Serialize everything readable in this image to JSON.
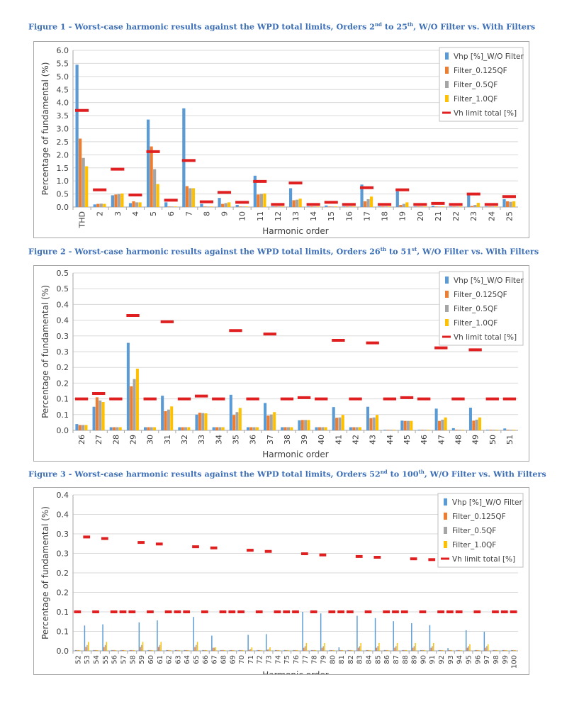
{
  "colors": {
    "vhp": "#5b9bd5",
    "filter_0125": "#ed7d31",
    "filter_05": "#a5a5a5",
    "filter_10": "#ffc000",
    "limit": "#e02020",
    "caption": "#3d6fb6"
  },
  "figures": [
    {
      "caption": {
        "prefix": "Figure 1 - Worst-case harmonic results against the WPD total limits, Orders 2",
        "sup1": "nd",
        "mid": " to 25",
        "sup2": "th",
        "suffix": ", W/O Filter vs. With Filters"
      }
    },
    {
      "caption": {
        "prefix": "Figure 2 - Worst-case harmonic results against the WPD total limits, Orders 26",
        "sup1": "th",
        "mid": " to 51",
        "sup2": "st",
        "suffix": ", W/O Filter vs. With Filters"
      }
    },
    {
      "caption": {
        "prefix": "Figure 3 - Worst-case harmonic results against the WPD total limits, Orders 52",
        "sup1": "nd",
        "mid": " to 100",
        "sup2": "th",
        "suffix": ", W/O Filter vs. With Filters"
      }
    }
  ],
  "chart_data": [
    {
      "type": "bar",
      "xlabel": "Harmonic order",
      "ylabel": "Percentage of fundamental (%)",
      "ylim": [
        0,
        6.0
      ],
      "yticks": [
        "0.0",
        "0.5",
        "1.0",
        "1.5",
        "2.0",
        "2.5",
        "3.0",
        "3.5",
        "4.0",
        "4.5",
        "5.0",
        "5.5",
        "6.0"
      ],
      "grid": true,
      "legend_position": "top-right",
      "categories": [
        "THD",
        "2",
        "3",
        "4",
        "5",
        "6",
        "7",
        "8",
        "9",
        "10",
        "11",
        "12",
        "13",
        "14",
        "15",
        "16",
        "17",
        "18",
        "19",
        "20",
        "21",
        "22",
        "23",
        "24",
        "25"
      ],
      "series": [
        {
          "name": "Vhp [%]_W/O Filter",
          "type": "bar",
          "values": [
            5.45,
            0.1,
            0.45,
            0.15,
            3.35,
            0.18,
            3.78,
            0.12,
            0.35,
            0.08,
            1.2,
            0.02,
            0.72,
            0.02,
            0.06,
            0.02,
            0.86,
            0.02,
            0.6,
            0.02,
            0.05,
            0.02,
            0.52,
            0.02,
            0.3
          ]
        },
        {
          "name": "Filter_0.125QF",
          "type": "bar",
          "values": [
            2.62,
            0.12,
            0.48,
            0.22,
            2.32,
            0.02,
            0.8,
            0.02,
            0.12,
            0.02,
            0.48,
            0.02,
            0.26,
            0.02,
            0.02,
            0.02,
            0.22,
            0.02,
            0.08,
            0.02,
            0.02,
            0.02,
            0.04,
            0.02,
            0.22
          ]
        },
        {
          "name": "Filter_0.5QF",
          "type": "bar",
          "values": [
            1.88,
            0.13,
            0.5,
            0.18,
            1.45,
            0.02,
            0.72,
            0.02,
            0.15,
            0.02,
            0.5,
            0.02,
            0.28,
            0.02,
            0.02,
            0.02,
            0.3,
            0.02,
            0.12,
            0.02,
            0.02,
            0.02,
            0.08,
            0.02,
            0.2
          ]
        },
        {
          "name": "Filter_1.0QF",
          "type": "bar",
          "values": [
            1.56,
            0.12,
            0.52,
            0.18,
            0.88,
            0.02,
            0.72,
            0.02,
            0.18,
            0.02,
            0.52,
            0.02,
            0.32,
            0.02,
            0.02,
            0.02,
            0.4,
            0.02,
            0.18,
            0.02,
            0.02,
            0.02,
            0.16,
            0.02,
            0.22
          ]
        },
        {
          "name": "Vh limit total [%]",
          "type": "limit",
          "values": [
            3.7,
            0.66,
            1.45,
            0.46,
            2.12,
            0.26,
            1.78,
            0.2,
            0.56,
            0.18,
            0.98,
            0.1,
            0.92,
            0.1,
            0.18,
            0.1,
            0.74,
            0.1,
            0.66,
            0.1,
            0.14,
            0.1,
            0.5,
            0.1,
            0.4
          ]
        }
      ]
    },
    {
      "type": "bar",
      "xlabel": "Harmonic order",
      "ylabel": "Percentage of fundamental (%)",
      "ylim": [
        0,
        0.5
      ],
      "yticks": [
        "0.0",
        "0.1",
        "0.1",
        "0.2",
        "0.2",
        "0.3",
        "0.3",
        "0.4",
        "0.4",
        "0.5",
        "0.5"
      ],
      "grid": true,
      "legend_position": "top-right",
      "categories": [
        "26",
        "27",
        "28",
        "29",
        "30",
        "31",
        "32",
        "33",
        "34",
        "35",
        "36",
        "37",
        "38",
        "39",
        "40",
        "41",
        "42",
        "43",
        "44",
        "45",
        "46",
        "47",
        "48",
        "49",
        "50",
        "51"
      ],
      "series": [
        {
          "name": "Vhp [%]_W/O Filter",
          "type": "bar",
          "values": [
            0.02,
            0.075,
            0.01,
            0.278,
            0.01,
            0.11,
            0.01,
            0.05,
            0.01,
            0.113,
            0.01,
            0.087,
            0.01,
            0.032,
            0.01,
            0.074,
            0.01,
            0.075,
            0.002,
            0.031,
            0.002,
            0.069,
            0.007,
            0.072,
            0.002,
            0.006
          ]
        },
        {
          "name": "Filter_0.125QF",
          "type": "bar",
          "values": [
            0.017,
            0.105,
            0.01,
            0.14,
            0.01,
            0.061,
            0.01,
            0.056,
            0.01,
            0.049,
            0.01,
            0.047,
            0.01,
            0.033,
            0.01,
            0.04,
            0.01,
            0.039,
            0.002,
            0.03,
            0.002,
            0.03,
            0.002,
            0.031,
            0.002,
            0.002
          ]
        },
        {
          "name": "Filter_0.5QF",
          "type": "bar",
          "values": [
            0.017,
            0.095,
            0.01,
            0.163,
            0.01,
            0.066,
            0.01,
            0.055,
            0.01,
            0.058,
            0.01,
            0.05,
            0.01,
            0.033,
            0.01,
            0.041,
            0.01,
            0.041,
            0.002,
            0.03,
            0.002,
            0.034,
            0.002,
            0.034,
            0.002,
            0.002
          ]
        },
        {
          "name": "Filter_1.0QF",
          "type": "bar",
          "values": [
            0.017,
            0.09,
            0.01,
            0.196,
            0.01,
            0.076,
            0.01,
            0.054,
            0.01,
            0.071,
            0.01,
            0.058,
            0.01,
            0.033,
            0.01,
            0.049,
            0.01,
            0.049,
            0.002,
            0.03,
            0.002,
            0.041,
            0.002,
            0.041,
            0.002,
            0.002
          ]
        },
        {
          "name": "Vh limit total [%]",
          "type": "limit",
          "values": [
            0.1,
            0.117,
            0.1,
            0.365,
            0.1,
            0.345,
            0.1,
            0.109,
            0.1,
            0.317,
            0.1,
            0.306,
            0.1,
            0.104,
            0.1,
            0.286,
            0.1,
            0.278,
            0.1,
            0.104,
            0.1,
            0.262,
            0.1,
            0.256,
            0.1,
            0.1
          ]
        }
      ]
    },
    {
      "type": "bar",
      "xlabel": "Harmonic order",
      "ylabel": "Percentage of fundamental (%)",
      "ylim": [
        0,
        0.4
      ],
      "yticks": [
        "0.0",
        "0.1",
        "0.1",
        "0.2",
        "0.2",
        "0.3",
        "0.3",
        "0.4",
        "0.4"
      ],
      "grid": true,
      "legend_position": "top-right",
      "categories": [
        "52",
        "53",
        "54",
        "55",
        "56",
        "57",
        "58",
        "59",
        "60",
        "61",
        "62",
        "63",
        "64",
        "65",
        "66",
        "67",
        "68",
        "69",
        "70",
        "71",
        "72",
        "73",
        "74",
        "75",
        "76",
        "77",
        "78",
        "79",
        "80",
        "81",
        "82",
        "83",
        "84",
        "85",
        "86",
        "87",
        "88",
        "89",
        "90",
        "91",
        "92",
        "93",
        "94",
        "95",
        "96",
        "97",
        "98",
        "99",
        "100"
      ],
      "series": [
        {
          "name": "Vhp [%]_W/O Filter",
          "type": "bar",
          "values": [
            0.002,
            0.065,
            0.002,
            0.068,
            0.002,
            0.002,
            0.002,
            0.073,
            0.002,
            0.078,
            0.002,
            0.002,
            0.002,
            0.087,
            0.002,
            0.039,
            0.002,
            0.002,
            0.002,
            0.041,
            0.002,
            0.043,
            0.002,
            0.002,
            0.002,
            0.1,
            0.002,
            0.096,
            0.002,
            0.009,
            0.002,
            0.09,
            0.002,
            0.084,
            0.002,
            0.076,
            0.002,
            0.071,
            0.002,
            0.066,
            0.002,
            0.007,
            0.002,
            0.053,
            0.002,
            0.049,
            0.002,
            0.002,
            0.002
          ]
        },
        {
          "name": "Filter_0.125QF",
          "type": "bar",
          "values": [
            0.002,
            0.01,
            0.002,
            0.01,
            0.002,
            0.002,
            0.002,
            0.01,
            0.002,
            0.01,
            0.002,
            0.002,
            0.002,
            0.01,
            0.002,
            0.008,
            0.002,
            0.002,
            0.002,
            0.003,
            0.002,
            0.003,
            0.002,
            0.002,
            0.002,
            0.008,
            0.002,
            0.008,
            0.002,
            0.002,
            0.002,
            0.008,
            0.002,
            0.008,
            0.002,
            0.008,
            0.002,
            0.008,
            0.002,
            0.008,
            0.002,
            0.002,
            0.002,
            0.008,
            0.002,
            0.008,
            0.002,
            0.002,
            0.002
          ]
        },
        {
          "name": "Filter_0.5QF",
          "type": "bar",
          "values": [
            0.002,
            0.015,
            0.002,
            0.015,
            0.002,
            0.002,
            0.002,
            0.015,
            0.002,
            0.015,
            0.002,
            0.002,
            0.002,
            0.015,
            0.002,
            0.008,
            0.002,
            0.002,
            0.002,
            0.004,
            0.002,
            0.004,
            0.002,
            0.002,
            0.002,
            0.012,
            0.002,
            0.012,
            0.002,
            0.002,
            0.002,
            0.012,
            0.002,
            0.012,
            0.002,
            0.012,
            0.002,
            0.012,
            0.002,
            0.012,
            0.002,
            0.002,
            0.002,
            0.012,
            0.002,
            0.012,
            0.002,
            0.002,
            0.002
          ]
        },
        {
          "name": "Filter_1.0QF",
          "type": "bar",
          "values": [
            0.002,
            0.023,
            0.002,
            0.023,
            0.002,
            0.002,
            0.002,
            0.023,
            0.002,
            0.023,
            0.002,
            0.002,
            0.002,
            0.023,
            0.002,
            0.009,
            0.002,
            0.002,
            0.002,
            0.009,
            0.002,
            0.009,
            0.002,
            0.002,
            0.002,
            0.02,
            0.002,
            0.02,
            0.002,
            0.002,
            0.002,
            0.02,
            0.002,
            0.02,
            0.002,
            0.02,
            0.002,
            0.02,
            0.002,
            0.02,
            0.002,
            0.002,
            0.002,
            0.017,
            0.002,
            0.017,
            0.002,
            0.002,
            0.002
          ]
        },
        {
          "name": "Vh limit total [%]",
          "type": "limit",
          "values": [
            0.1,
            0.292,
            0.1,
            0.288,
            0.1,
            0.1,
            0.1,
            0.278,
            0.1,
            0.274,
            0.1,
            0.1,
            0.1,
            0.267,
            0.1,
            0.264,
            0.1,
            0.1,
            0.1,
            0.258,
            0.1,
            0.255,
            0.1,
            0.1,
            0.1,
            0.249,
            0.1,
            0.246,
            0.1,
            0.1,
            0.1,
            0.242,
            0.1,
            0.24,
            0.1,
            0.1,
            0.1,
            0.236,
            0.1,
            0.234,
            0.1,
            0.1,
            0.1,
            0.231,
            0.1,
            0.229,
            0.1,
            0.1,
            0.1
          ]
        }
      ]
    }
  ]
}
